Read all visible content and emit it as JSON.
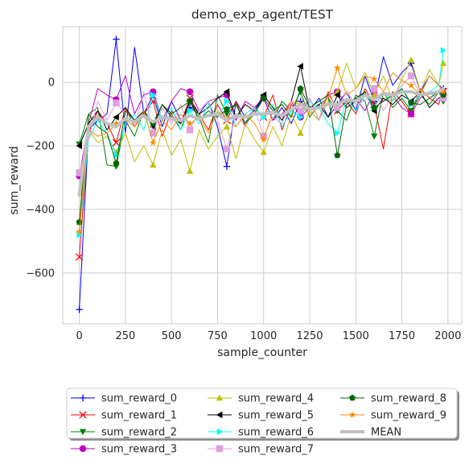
{
  "chart_data": {
    "type": "line",
    "title": "demo_exp_agent/TEST",
    "xlabel": "sample_counter",
    "ylabel": "sum_reward",
    "xlim": [
      -90,
      2075
    ],
    "ylim": [
      -760,
      175
    ],
    "xticks": [
      0,
      250,
      500,
      750,
      1000,
      1250,
      1500,
      1750,
      2000
    ],
    "xtick_labels": [
      "0",
      "250",
      "500",
      "750",
      "1000",
      "1250",
      "1500",
      "1750",
      "2000"
    ],
    "yticks": [
      -600,
      -400,
      -200,
      0
    ],
    "ytick_labels": [
      "−600",
      "−400",
      "−200",
      "0"
    ],
    "grid": true,
    "legend_position": "bottom-center-outside",
    "x": [
      0,
      50,
      100,
      150,
      200,
      250,
      300,
      350,
      400,
      450,
      500,
      550,
      600,
      650,
      700,
      750,
      800,
      850,
      900,
      950,
      1000,
      1050,
      1100,
      1150,
      1200,
      1250,
      1300,
      1350,
      1400,
      1450,
      1500,
      1550,
      1600,
      1650,
      1700,
      1750,
      1800,
      1850,
      1900,
      1950,
      1975
    ],
    "series": [
      {
        "name": "sum_reward_0",
        "color": "#0000ff",
        "marker": "plus",
        "values": [
          -715,
          -150,
          -120,
          -100,
          135,
          -160,
          110,
          -100,
          -40,
          -140,
          -60,
          -120,
          -80,
          -100,
          -60,
          -140,
          -265,
          -60,
          -110,
          -90,
          -50,
          -120,
          -80,
          -130,
          -60,
          -90,
          -50,
          -110,
          -70,
          -30,
          -90,
          20,
          -60,
          80,
          -10,
          30,
          60,
          -30,
          20,
          -10,
          -20
        ]
      },
      {
        "name": "sum_reward_1",
        "color": "#ff0000",
        "marker": "x",
        "values": [
          -550,
          -160,
          -90,
          -130,
          -190,
          -80,
          -140,
          -100,
          -60,
          -170,
          -90,
          -130,
          -50,
          -100,
          -150,
          -70,
          -120,
          -60,
          -140,
          -80,
          -110,
          -40,
          -150,
          -70,
          -100,
          -50,
          -120,
          -30,
          -90,
          -60,
          -100,
          -20,
          -70,
          -210,
          -30,
          -60,
          -100,
          -20,
          -50,
          -70,
          -30
        ]
      },
      {
        "name": "sum_reward_2",
        "color": "#008000",
        "marker": "triangle-down",
        "values": [
          -195,
          -100,
          -80,
          -260,
          -265,
          -120,
          -170,
          -90,
          -130,
          -70,
          -100,
          -150,
          -60,
          -110,
          -190,
          -40,
          -100,
          -70,
          -130,
          -80,
          -50,
          -120,
          -60,
          -90,
          -30,
          -110,
          -70,
          -50,
          -90,
          -120,
          -40,
          -60,
          -170,
          -30,
          -80,
          -50,
          -90,
          -40,
          -70,
          -30,
          -60
        ]
      },
      {
        "name": "sum_reward_3",
        "color": "#bf00bf",
        "marker": "circle",
        "values": [
          -295,
          -130,
          -20,
          -40,
          -55,
          20,
          -100,
          -40,
          -30,
          -120,
          -60,
          -20,
          -30,
          -90,
          -60,
          -50,
          -40,
          -120,
          -60,
          -80,
          -50,
          -120,
          -100,
          -60,
          -110,
          -80,
          -60,
          -40,
          -30,
          -70,
          -50,
          -90,
          -30,
          -60,
          -40,
          -80,
          -100,
          -50,
          -30,
          -60,
          -40
        ]
      },
      {
        "name": "sum_reward_4",
        "color": "#bfbf00",
        "marker": "triangle-up",
        "values": [
          -440,
          -150,
          -190,
          -170,
          -220,
          -160,
          -250,
          -200,
          -260,
          -150,
          -230,
          -180,
          -280,
          -150,
          -210,
          -170,
          -140,
          -240,
          -130,
          -180,
          -220,
          -140,
          -200,
          -100,
          -160,
          -90,
          -120,
          -60,
          -30,
          60,
          -20,
          30,
          -40,
          20,
          -60,
          10,
          70,
          -30,
          40,
          -10,
          60
        ]
      },
      {
        "name": "sum_reward_5",
        "color": "#000000",
        "marker": "triangle-left",
        "values": [
          -200,
          -130,
          -90,
          -150,
          -110,
          -80,
          -120,
          -90,
          -140,
          -70,
          -110,
          -130,
          -60,
          -100,
          -80,
          -50,
          -30,
          -110,
          -70,
          -90,
          -40,
          -80,
          -120,
          -60,
          50,
          -90,
          -70,
          -110,
          -40,
          -80,
          -60,
          -30,
          -90,
          -50,
          -70,
          -40,
          -60,
          -30,
          -80,
          -50,
          -40
        ]
      },
      {
        "name": "sum_reward_6",
        "color": "#00ffff",
        "marker": "triangle-right",
        "values": [
          -480,
          -180,
          -120,
          -160,
          -230,
          -130,
          -100,
          -150,
          -40,
          -120,
          -80,
          -150,
          -90,
          -130,
          -70,
          -110,
          -60,
          -140,
          -100,
          -80,
          -110,
          -70,
          -140,
          -90,
          -110,
          -60,
          -80,
          -130,
          -160,
          -50,
          -90,
          -40,
          -80,
          -30,
          -60,
          -20,
          -70,
          -40,
          -30,
          -10,
          100
        ]
      },
      {
        "name": "sum_reward_7",
        "color": "#dda0dd",
        "marker": "square",
        "values": [
          -285,
          -180,
          -60,
          -120,
          -65,
          -100,
          -140,
          -30,
          -160,
          -80,
          -130,
          -70,
          -150,
          -90,
          -60,
          -120,
          -210,
          -100,
          -140,
          -80,
          -170,
          -110,
          -130,
          -60,
          -90,
          -50,
          -120,
          -40,
          -80,
          -30,
          -70,
          -60,
          -20,
          -90,
          -40,
          -10,
          20,
          -40,
          -30,
          -60,
          -50
        ]
      },
      {
        "name": "sum_reward_8",
        "color": "#006400",
        "marker": "pentagon",
        "values": [
          -440,
          -100,
          -140,
          -160,
          -255,
          -90,
          -120,
          -110,
          -130,
          -70,
          -100,
          -80,
          -60,
          -120,
          -90,
          -110,
          -85,
          -70,
          -130,
          -100,
          -50,
          -90,
          -70,
          -110,
          -20,
          -80,
          -60,
          -40,
          -230,
          -70,
          -50,
          -30,
          -80,
          -60,
          -40,
          -20,
          -65,
          -70,
          -50,
          -30,
          -40
        ]
      },
      {
        "name": "sum_reward_9",
        "color": "#ff8c00",
        "marker": "star",
        "values": [
          -470,
          -150,
          -170,
          -160,
          -130,
          -120,
          -140,
          -90,
          -190,
          -120,
          -150,
          -100,
          -130,
          -110,
          -160,
          -90,
          -120,
          -140,
          -100,
          -130,
          -180,
          -90,
          -110,
          -60,
          -70,
          -100,
          -80,
          -50,
          45,
          -40,
          -20,
          20,
          10,
          -30,
          30,
          5,
          -10,
          -40,
          20,
          -10,
          -30
        ]
      },
      {
        "name": "MEAN",
        "color": "#c0c0c0",
        "marker": "none",
        "width": 4,
        "values": [
          -355,
          -140,
          -110,
          -130,
          -140,
          -115,
          -125,
          -105,
          -125,
          -110,
          -115,
          -120,
          -105,
          -115,
          -105,
          -100,
          -120,
          -105,
          -110,
          -100,
          -100,
          -95,
          -105,
          -85,
          -70,
          -85,
          -80,
          -70,
          -70,
          -55,
          -60,
          -40,
          -55,
          -35,
          -40,
          -30,
          -30,
          -40,
          -35,
          -30,
          -20
        ]
      }
    ]
  }
}
